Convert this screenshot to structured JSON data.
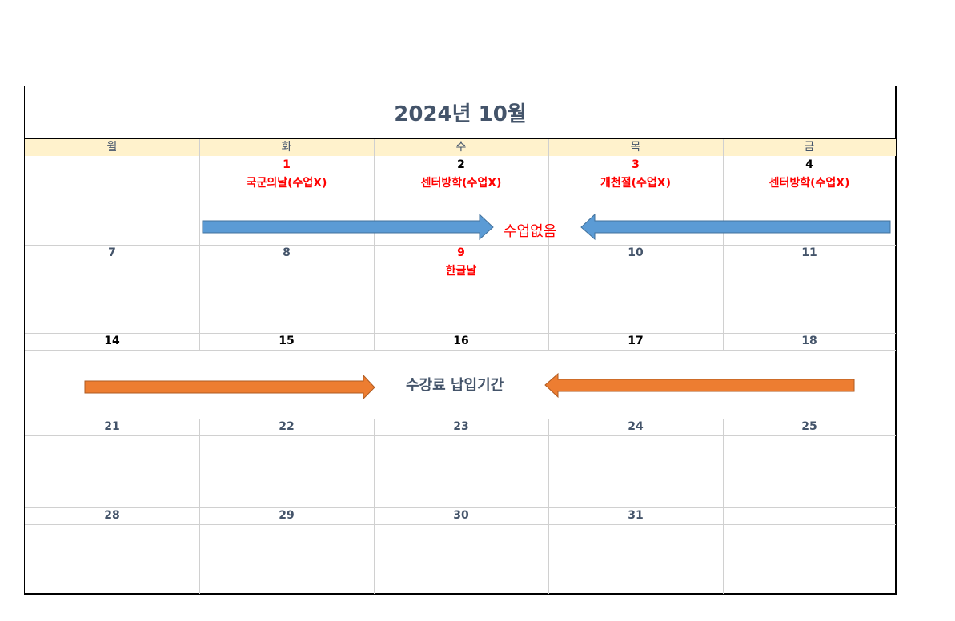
{
  "calendar": {
    "title": "2024년 10월",
    "weekdays": [
      "월",
      "화",
      "수",
      "목",
      "금"
    ],
    "weeks": [
      {
        "dates": [
          "",
          "1",
          "2",
          "3",
          "4"
        ],
        "date_colors": [
          "#44546a",
          "#ff0000",
          "#000000",
          "#ff0000",
          "#000000"
        ],
        "notes": [
          "",
          "국군의날(수업X)",
          "센터방학(수업X)",
          "개천절(수업X)",
          "센터방학(수업X)"
        ]
      },
      {
        "dates": [
          "7",
          "8",
          "9",
          "10",
          "11"
        ],
        "date_colors": [
          "#44546a",
          "#44546a",
          "#ff0000",
          "#44546a",
          "#44546a"
        ],
        "notes": [
          "",
          "",
          "한글날",
          "",
          ""
        ]
      },
      {
        "dates": [
          "14",
          "15",
          "16",
          "17",
          "18"
        ],
        "date_colors": [
          "#000000",
          "#000000",
          "#000000",
          "#000000",
          "#44546a"
        ],
        "notes": [
          "",
          "",
          "",
          "",
          ""
        ]
      },
      {
        "dates": [
          "21",
          "22",
          "23",
          "24",
          "25"
        ],
        "date_colors": [
          "#44546a",
          "#44546a",
          "#44546a",
          "#44546a",
          "#44546a"
        ],
        "notes": [
          "",
          "",
          "",
          "",
          ""
        ]
      },
      {
        "dates": [
          "28",
          "29",
          "30",
          "31",
          ""
        ],
        "date_colors": [
          "#44546a",
          "#44546a",
          "#44546a",
          "#44546a",
          "#44546a"
        ],
        "notes": [
          "",
          "",
          "",
          "",
          ""
        ]
      }
    ],
    "banner_no_class": {
      "label": "수업없음",
      "color": "#ff0000",
      "arrow_color": "#5b9bd5"
    },
    "banner_tuition": {
      "label": "수강료 납입기간",
      "color": "#44546a",
      "arrow_color": "#ed7d31"
    }
  },
  "colors": {
    "header_fill": "#fff2cc",
    "title_text": "#44546a",
    "grid": "#d0d0d0"
  }
}
